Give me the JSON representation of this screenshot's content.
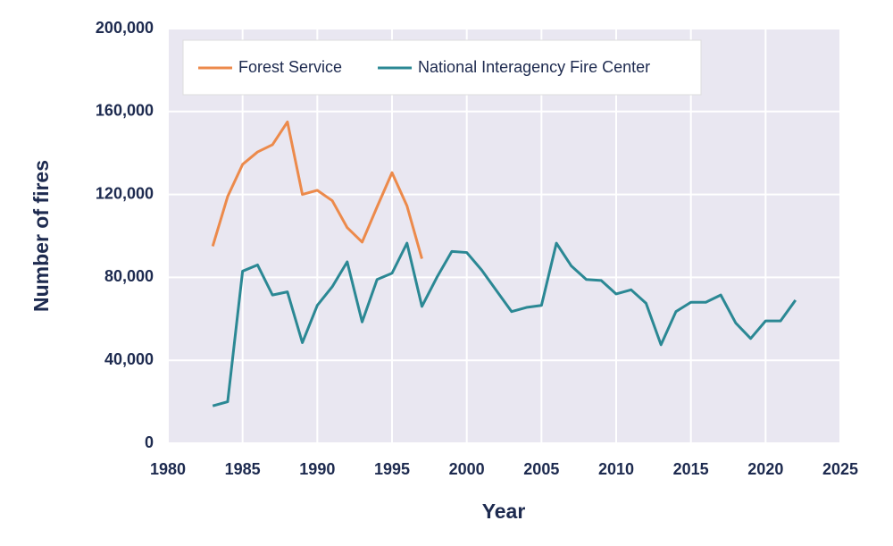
{
  "chart_data": {
    "type": "line",
    "x_label": "Year",
    "y_label": "Number of fires",
    "x": [
      1983,
      1984,
      1985,
      1986,
      1987,
      1988,
      1989,
      1990,
      1991,
      1992,
      1993,
      1994,
      1995,
      1996,
      1997,
      1998,
      1999,
      2000,
      2001,
      2002,
      2003,
      2004,
      2005,
      2006,
      2007,
      2008,
      2009,
      2010,
      2011,
      2012,
      2013,
      2014,
      2015,
      2016,
      2017,
      2018,
      2019,
      2020,
      2021,
      2022
    ],
    "series": [
      {
        "name": "Forest Service",
        "color": "#ec8a4b",
        "values": [
          95000,
          119000,
          134500,
          140500,
          144000,
          155000,
          120000,
          122000,
          117000,
          104000,
          97000,
          114000,
          130500,
          114500,
          89000,
          null,
          null,
          null,
          null,
          null,
          null,
          null,
          null,
          null,
          null,
          null,
          null,
          null,
          null,
          null,
          null,
          null,
          null,
          null,
          null,
          null,
          null,
          null,
          null,
          null
        ]
      },
      {
        "name": "National Interagency Fire Center",
        "color": "#2b8894",
        "values": [
          18000,
          20000,
          83000,
          86000,
          71500,
          73000,
          48500,
          66500,
          75500,
          87500,
          58500,
          79000,
          82000,
          96500,
          66000,
          80000,
          92500,
          92000,
          83500,
          73500,
          63500,
          65500,
          66500,
          96500,
          85500,
          79000,
          78500,
          72000,
          74000,
          67500,
          47500,
          63500,
          68000,
          68000,
          71500,
          58000,
          50500,
          59000,
          59000,
          69000
        ]
      }
    ],
    "xlim": [
      1980,
      2025
    ],
    "xticks": [
      1980,
      1985,
      1990,
      1995,
      2000,
      2005,
      2010,
      2015,
      2020,
      2025
    ],
    "ylim": [
      0,
      200000
    ],
    "yticks": [
      0,
      {
        "value": 40000,
        "label": "40,000"
      },
      {
        "value": 80000,
        "label": "80,000"
      },
      {
        "value": 120000,
        "label": "120,000"
      },
      {
        "value": 160000,
        "label": "160,000"
      },
      {
        "value": 200000,
        "label": "200,000"
      }
    ],
    "grid": true,
    "legend": "upper left"
  }
}
